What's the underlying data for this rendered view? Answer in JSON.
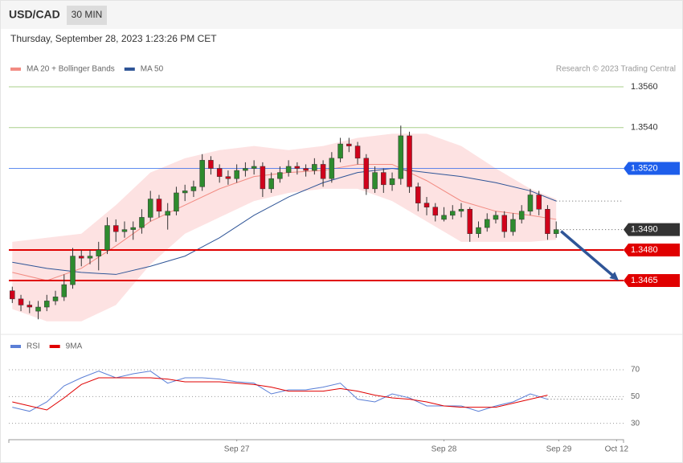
{
  "header": {
    "symbol": "USD/CAD",
    "timeframe": "30 MIN",
    "timestamp": "Thursday, September 28, 2023 1:23:26 PM CET",
    "credit": "Research © 2023 Trading Central"
  },
  "chart_data": [
    {
      "type": "candlestick",
      "legend": [
        {
          "name": "MA 20 + Bollinger Bands",
          "color": "#f28b82"
        },
        {
          "name": "MA 50",
          "color": "#2f5597"
        }
      ],
      "up_color": "#2e8b2e",
      "down_color": "#d0021b",
      "band_color": "#fde2e2",
      "xlim": [
        -0.4,
        70.8
      ],
      "ylim": [
        1.3439,
        1.3575
      ],
      "x": [
        0,
        1,
        2,
        3,
        4,
        5,
        6,
        7,
        8,
        9,
        10,
        11,
        12,
        13,
        14,
        15,
        16,
        17,
        18,
        19,
        20,
        21,
        22,
        23,
        24,
        25,
        26,
        27,
        28,
        29,
        30,
        31,
        32,
        33,
        34,
        35,
        36,
        37,
        38,
        39,
        40,
        41,
        42,
        43,
        44,
        45,
        46,
        47,
        48,
        49,
        50,
        51,
        52,
        53,
        54,
        55,
        56,
        57,
        58,
        59,
        60,
        61,
        62,
        63
      ],
      "ohlc": [
        [
          1.346,
          1.3462,
          1.3454,
          1.3456
        ],
        [
          1.3456,
          1.3458,
          1.345,
          1.3453
        ],
        [
          1.3453,
          1.3455,
          1.3449,
          1.3452
        ],
        [
          1.345,
          1.3455,
          1.3446,
          1.3452
        ],
        [
          1.3452,
          1.3458,
          1.345,
          1.3455
        ],
        [
          1.3455,
          1.346,
          1.3453,
          1.3457
        ],
        [
          1.3457,
          1.3468,
          1.3455,
          1.3463
        ],
        [
          1.3463,
          1.3481,
          1.3461,
          1.3477
        ],
        [
          1.3477,
          1.348,
          1.3472,
          1.3476
        ],
        [
          1.3476,
          1.348,
          1.3473,
          1.3477
        ],
        [
          1.3477,
          1.3484,
          1.347,
          1.348
        ],
        [
          1.348,
          1.3496,
          1.3478,
          1.3492
        ],
        [
          1.3492,
          1.3495,
          1.3484,
          1.3489
        ],
        [
          1.3489,
          1.3494,
          1.3486,
          1.349
        ],
        [
          1.349,
          1.3494,
          1.3485,
          1.3491
        ],
        [
          1.3491,
          1.35,
          1.3488,
          1.3496
        ],
        [
          1.3496,
          1.3509,
          1.3494,
          1.3505
        ],
        [
          1.3505,
          1.3507,
          1.3496,
          1.3499
        ],
        [
          1.3497,
          1.3503,
          1.349,
          1.3499
        ],
        [
          1.3499,
          1.3511,
          1.3497,
          1.3508
        ],
        [
          1.3508,
          1.3512,
          1.3504,
          1.3509
        ],
        [
          1.3509,
          1.3514,
          1.3506,
          1.3511
        ],
        [
          1.3511,
          1.3527,
          1.3509,
          1.3524
        ],
        [
          1.3524,
          1.3526,
          1.3517,
          1.352
        ],
        [
          1.352,
          1.3522,
          1.3513,
          1.3516
        ],
        [
          1.3516,
          1.3519,
          1.3512,
          1.3515
        ],
        [
          1.3515,
          1.3522,
          1.3513,
          1.3519
        ],
        [
          1.3519,
          1.3523,
          1.3516,
          1.352
        ],
        [
          1.352,
          1.3524,
          1.3517,
          1.3521
        ],
        [
          1.3521,
          1.3523,
          1.3506,
          1.351
        ],
        [
          1.351,
          1.3518,
          1.3508,
          1.3515
        ],
        [
          1.3515,
          1.3521,
          1.3513,
          1.3518
        ],
        [
          1.3518,
          1.3524,
          1.3516,
          1.3521
        ],
        [
          1.3521,
          1.3523,
          1.3517,
          1.352
        ],
        [
          1.352,
          1.3522,
          1.3516,
          1.3519
        ],
        [
          1.3519,
          1.3525,
          1.3517,
          1.3522
        ],
        [
          1.3522,
          1.3524,
          1.3511,
          1.3515
        ],
        [
          1.3515,
          1.3528,
          1.3513,
          1.3525
        ],
        [
          1.3525,
          1.3535,
          1.3523,
          1.3532
        ],
        [
          1.3532,
          1.3535,
          1.3528,
          1.3531
        ],
        [
          1.3531,
          1.3533,
          1.3522,
          1.3525
        ],
        [
          1.3525,
          1.3527,
          1.3507,
          1.351
        ],
        [
          1.351,
          1.3521,
          1.3508,
          1.3518
        ],
        [
          1.3518,
          1.352,
          1.3508,
          1.3512
        ],
        [
          1.3512,
          1.3518,
          1.3509,
          1.3515
        ],
        [
          1.3515,
          1.3541,
          1.3512,
          1.3536
        ],
        [
          1.3536,
          1.3538,
          1.3508,
          1.3511
        ],
        [
          1.3511,
          1.3513,
          1.3499,
          1.3503
        ],
        [
          1.3503,
          1.3506,
          1.3497,
          1.3501
        ],
        [
          1.3501,
          1.3503,
          1.3494,
          1.3497
        ],
        [
          1.3495,
          1.3501,
          1.3494,
          1.3497
        ],
        [
          1.3497,
          1.3502,
          1.3495,
          1.3499
        ],
        [
          1.3499,
          1.3503,
          1.3496,
          1.35
        ],
        [
          1.35,
          1.3501,
          1.3484,
          1.3488
        ],
        [
          1.3488,
          1.3494,
          1.3486,
          1.3491
        ],
        [
          1.3491,
          1.3498,
          1.3489,
          1.3495
        ],
        [
          1.3495,
          1.3499,
          1.3493,
          1.3497
        ],
        [
          1.3497,
          1.3499,
          1.3486,
          1.3489
        ],
        [
          1.3489,
          1.3498,
          1.3487,
          1.3495
        ],
        [
          1.3495,
          1.3502,
          1.3493,
          1.3499
        ],
        [
          1.3499,
          1.351,
          1.3497,
          1.3507
        ],
        [
          1.3507,
          1.3509,
          1.3497,
          1.35
        ],
        [
          1.35,
          1.3502,
          1.3485,
          1.3488
        ],
        [
          1.3488,
          1.3494,
          1.3486,
          1.349
        ]
      ],
      "indicators": {
        "x": [
          0,
          4,
          8,
          12,
          16,
          20,
          24,
          28,
          32,
          36,
          40,
          44,
          48,
          52,
          56,
          60,
          63
        ],
        "ma20": [
          1.3469,
          1.3465,
          1.3471,
          1.3482,
          1.3494,
          1.3502,
          1.351,
          1.3516,
          1.3518,
          1.3519,
          1.3522,
          1.3522,
          1.3514,
          1.3504,
          1.3499,
          1.3497,
          1.3495
        ],
        "ma50": [
          1.3474,
          1.3471,
          1.3469,
          1.3468,
          1.3472,
          1.3477,
          1.3486,
          1.3497,
          1.3506,
          1.3513,
          1.3518,
          1.352,
          1.3518,
          1.3516,
          1.3513,
          1.3509,
          1.3504
        ],
        "upper": [
          1.3484,
          1.3486,
          1.3488,
          1.3502,
          1.3518,
          1.3525,
          1.3529,
          1.3531,
          1.3529,
          1.3531,
          1.3535,
          1.3537,
          1.3537,
          1.3531,
          1.352,
          1.351,
          1.3505
        ],
        "lower": [
          1.3451,
          1.3445,
          1.3445,
          1.3453,
          1.3473,
          1.3488,
          1.3496,
          1.3504,
          1.3508,
          1.351,
          1.351,
          1.3504,
          1.3494,
          1.3484,
          1.3484,
          1.3484,
          1.3485
        ]
      },
      "levels": [
        {
          "value": 1.356,
          "label": "1.3560",
          "color": "#4a9a0a",
          "style": "text"
        },
        {
          "value": 1.354,
          "label": "1.3540",
          "color": "#4a9a0a",
          "style": "text"
        },
        {
          "value": 1.352,
          "label": "1.3520",
          "color": "#1e5eeb",
          "style": "box"
        },
        {
          "value": 1.349,
          "label": "1.3490",
          "color": "#333333",
          "style": "price"
        },
        {
          "value": 1.348,
          "label": "1.3480",
          "color": "#e00000",
          "style": "box"
        },
        {
          "value": 1.3465,
          "color": "#e00000",
          "style": "box"
        }
      ],
      "arrow_color": "#2f5597"
    },
    {
      "type": "line",
      "xlim": [
        -0.4,
        70.8
      ],
      "ylim": [
        19,
        94
      ],
      "yticks": [
        30,
        50,
        70
      ],
      "xticks": [
        {
          "value": 26,
          "label": "Sep 27"
        },
        {
          "value": 50,
          "label": "Sep 28"
        },
        {
          "value": 63.3,
          "label": "Sep 29"
        },
        {
          "value": 70,
          "label": "Oct 12"
        }
      ],
      "x": [
        0,
        2,
        4,
        6,
        8,
        10,
        12,
        14,
        16,
        18,
        20,
        22,
        24,
        26,
        28,
        30,
        32,
        34,
        36,
        38,
        40,
        42,
        44,
        46,
        48,
        50,
        52,
        54,
        56,
        58,
        60,
        62
      ],
      "series": [
        {
          "name": "RSI",
          "color": "#5b7fd6",
          "values": [
            42,
            39,
            46,
            58,
            64,
            69,
            64,
            67,
            69,
            60,
            64,
            64,
            63,
            61,
            60,
            52,
            55,
            55,
            57,
            60,
            48,
            46,
            52,
            49,
            43,
            43,
            43,
            39,
            43,
            46,
            52,
            48
          ]
        },
        {
          "name": "9MA",
          "color": "#e00000",
          "values": [
            46,
            43,
            40,
            49,
            59,
            64,
            64,
            64,
            64,
            63,
            61,
            61,
            61,
            60,
            59,
            57,
            54,
            54,
            54,
            56,
            54,
            51,
            49,
            48,
            46,
            43,
            42,
            42,
            42,
            45,
            48,
            51
          ]
        }
      ]
    }
  ]
}
